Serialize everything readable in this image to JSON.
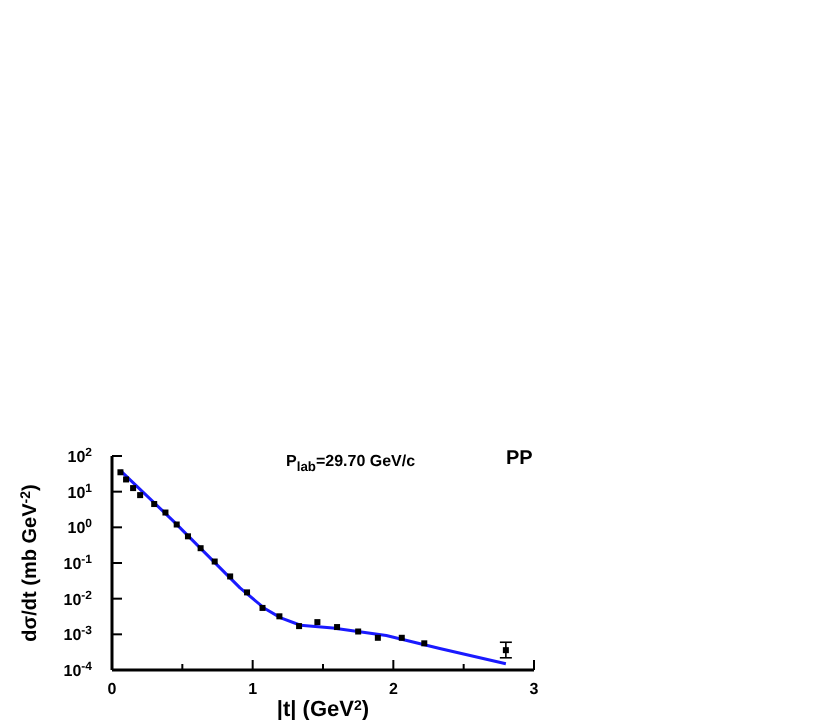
{
  "chart_data": {
    "type": "scatter",
    "xlabel": "|t| (GeV$^{2}$)",
    "ylabel": "dσ/dt (mb GeV$^{-2}$)",
    "annotations": [
      "P$_{lab}$=29.70 GeV/c",
      "PP"
    ],
    "log": "y",
    "xlim": [
      0,
      3
    ],
    "xticks": [
      0,
      {
        "value": 0.5,
        "label": null
      },
      1,
      {
        "value": 1.5,
        "label": null
      },
      2,
      {
        "value": 2.5,
        "label": null
      },
      3
    ],
    "ylim": [
      0.0001,
      100
    ],
    "yticks": [
      {
        "value": 100,
        "label": "10$^{2}$"
      },
      {
        "value": 10,
        "label": "10$^{1}$"
      },
      {
        "value": 1,
        "label": "10$^{0}$"
      },
      {
        "value": 0.1,
        "label": "10$^{-1}$"
      },
      {
        "value": 0.01,
        "label": "10$^{-2}$"
      },
      {
        "value": 0.001,
        "label": "10$^{-3}$"
      },
      {
        "value": 0.0001,
        "label": "10$^{-4}$"
      }
    ],
    "series": [
      {
        "marker": "square",
        "color": "#000000",
        "x": [
          0.06,
          0.1,
          0.15,
          0.2,
          0.3,
          0.38,
          0.46,
          0.54,
          0.63,
          0.73,
          0.84,
          0.96,
          1.07,
          1.19,
          1.33,
          1.46,
          1.6,
          1.75,
          1.89,
          2.06,
          2.22,
          2.8
        ],
        "values": [
          35,
          22,
          12.6,
          8,
          4.5,
          2.6,
          1.2,
          0.56,
          0.26,
          0.11,
          0.042,
          0.015,
          0.0055,
          0.0032,
          0.0017,
          0.0022,
          0.0016,
          0.0012,
          0.0008,
          0.0008,
          0.00056,
          0.00036
        ],
        "errors": [
          null,
          null,
          null,
          null,
          null,
          null,
          null,
          null,
          null,
          null,
          null,
          null,
          null,
          null,
          null,
          null,
          null,
          null,
          null,
          null,
          null,
          [
            0.00022,
            0.0006
          ]
        ]
      },
      {
        "type": "line",
        "marker": "none",
        "line_style": "solid",
        "color": "#1a1aff",
        "x": [
          0.06,
          0.44,
          0.91,
          1.08,
          1.2,
          1.34,
          1.57,
          1.95,
          2.33,
          2.8
        ],
        "values": [
          39,
          1.45,
          0.02,
          0.0055,
          0.0029,
          0.0018,
          0.0015,
          0.00093,
          0.0004,
          0.00015
        ]
      }
    ]
  }
}
